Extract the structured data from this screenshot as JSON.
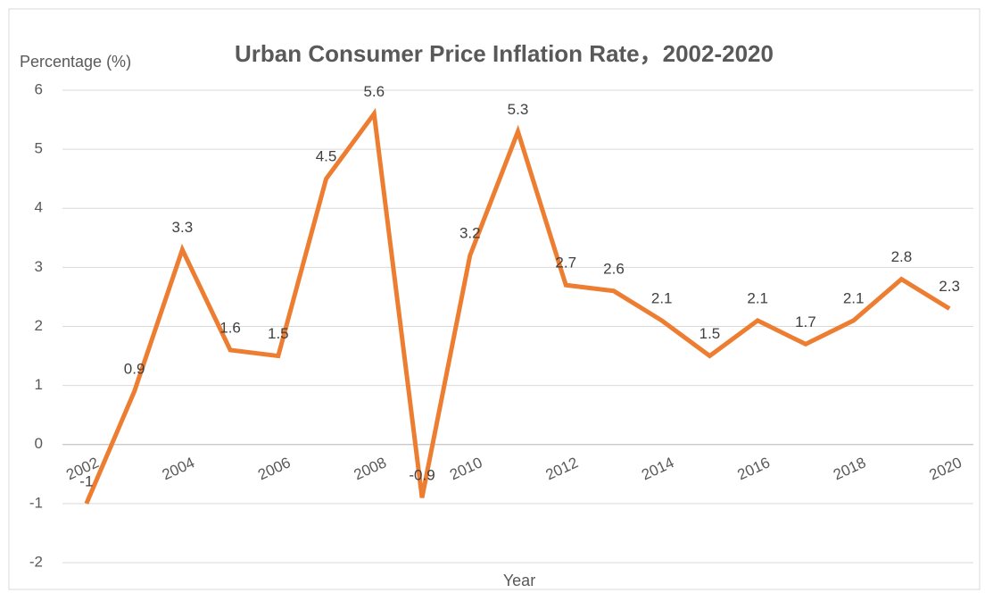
{
  "chart_data": {
    "type": "line",
    "title": "Urban Consumer Price Inflation Rate，2002-2020",
    "y_label": "Percentage (%)",
    "x_label": "Year",
    "categories": [
      "2002",
      null,
      "2004",
      null,
      "2006",
      null,
      "2008",
      null,
      "2010",
      null,
      "2012",
      null,
      "2014",
      null,
      "2016",
      null,
      "2018",
      null,
      "2020"
    ],
    "series": [
      {
        "name": "Inflation rate",
        "color": "#ed7d31",
        "values": [
          -1,
          0.9,
          3.3,
          1.6,
          1.5,
          4.5,
          5.6,
          -0.9,
          3.2,
          5.3,
          2.7,
          2.6,
          2.1,
          1.5,
          2.1,
          1.7,
          2.1,
          2.8,
          2.3
        ]
      }
    ],
    "ylim": [
      -2,
      6
    ],
    "yticks": [
      -2,
      -1,
      0,
      1,
      2,
      3,
      4,
      5,
      6
    ],
    "grid": true
  }
}
